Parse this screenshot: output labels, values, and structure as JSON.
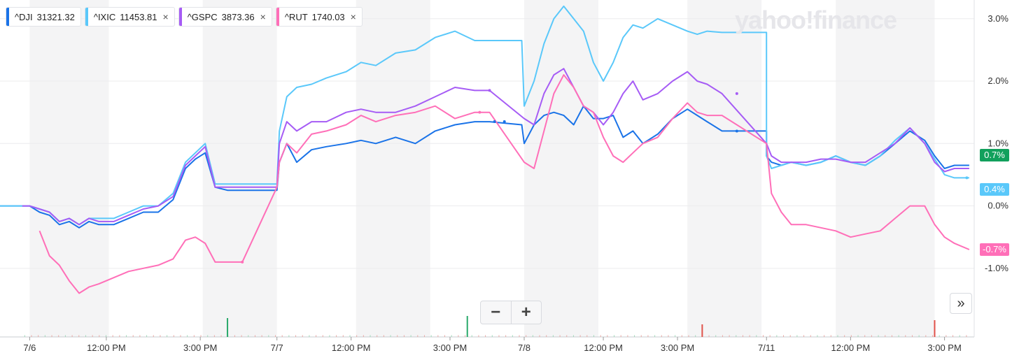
{
  "colors": {
    "dji": "#1a73e8",
    "ixic": "#5ac8fa",
    "gspc": "#a65cf5",
    "rut": "#ff6fb8",
    "positive": "#12a05c",
    "volume_up": "#2aa96b",
    "volume_down": "#e0524a"
  },
  "legend": [
    {
      "symbol": "^DJI",
      "value": "31321.32",
      "color": "#1a73e8",
      "closable": false
    },
    {
      "symbol": "^IXIC",
      "value": "11453.81",
      "color": "#5ac8fa",
      "closable": true
    },
    {
      "symbol": "^GSPC",
      "value": "3873.36",
      "color": "#a65cf5",
      "closable": true
    },
    {
      "symbol": "^RUT",
      "value": "1740.03",
      "color": "#ff6fb8",
      "closable": true
    }
  ],
  "close_icon": "×",
  "logo_text": "yahoo!finance",
  "zoom": {
    "minus": "−",
    "plus": "+"
  },
  "expand_icon": "»",
  "badges": [
    {
      "text": "0.7%",
      "value": 0.7,
      "color": "#12a05c"
    },
    {
      "text": "0.4%",
      "value": 0.4,
      "color": "#5ac8fa"
    },
    {
      "text": "-0.7%",
      "value": -0.7,
      "color": "#ff6fb8"
    }
  ],
  "chart_data": {
    "type": "line",
    "title": "",
    "xlabel": "",
    "ylabel": "",
    "y_unit": "%",
    "ylim": [
      -2.1,
      3.3
    ],
    "xlim": [
      0,
      19.7
    ],
    "grid": true,
    "legend_position": "top-left",
    "y_ticks": [
      3.0,
      2.0,
      1.0,
      0.0,
      -1.0
    ],
    "y_tick_labels": [
      "3.0%",
      "2.0%",
      "1.0%",
      "0.0%",
      "-1.0%"
    ],
    "x_ticks": [
      0.6,
      2.15,
      4.05,
      5.6,
      7.1,
      9.1,
      10.6,
      12.2,
      13.7,
      15.5,
      17.2,
      19.1
    ],
    "x_tick_labels": [
      "7/6",
      "12:00 PM",
      "3:00 PM",
      "7/7",
      "12:00 PM",
      "3:00 PM",
      "7/8",
      "12:00 PM",
      "3:00 PM",
      "7/11",
      "12:00 PM",
      "3:00 PM"
    ],
    "shaded_bands": [
      [
        0.6,
        2.2
      ],
      [
        4.1,
        5.6
      ],
      [
        7.2,
        8.7
      ],
      [
        10.6,
        12.1
      ],
      [
        13.9,
        15.4
      ],
      [
        16.9,
        18.9
      ]
    ],
    "series": [
      {
        "name": "^DJI",
        "color": "#1a73e8",
        "x": [
          0.0,
          0.45,
          0.6,
          0.8,
          1.0,
          1.2,
          1.4,
          1.6,
          1.8,
          2.0,
          2.3,
          2.6,
          2.9,
          3.2,
          3.5,
          3.75,
          3.95,
          4.15,
          4.35,
          4.6,
          4.9,
          5.6,
          5.65,
          5.8,
          6.0,
          6.3,
          6.6,
          7.0,
          7.3,
          7.6,
          8.0,
          8.4,
          8.8,
          9.2,
          9.6,
          9.9,
          10.55,
          10.6,
          10.8,
          11.0,
          11.2,
          11.4,
          11.6,
          11.8,
          12.0,
          12.2,
          12.4,
          12.6,
          12.8,
          13.0,
          13.3,
          13.6,
          13.9,
          14.1,
          14.3,
          14.6,
          15.5,
          15.5,
          15.6,
          15.8,
          16.0,
          16.3,
          16.6,
          16.9,
          17.2,
          17.5,
          17.8,
          18.1,
          18.4,
          18.7,
          18.9,
          19.1,
          19.3,
          19.6
        ],
        "y": [
          0.0,
          0.0,
          0.0,
          -0.1,
          -0.15,
          -0.3,
          -0.25,
          -0.35,
          -0.25,
          -0.3,
          -0.3,
          -0.2,
          -0.1,
          -0.1,
          0.1,
          0.6,
          0.75,
          0.85,
          0.3,
          0.25,
          0.25,
          0.25,
          0.7,
          1.0,
          0.7,
          0.9,
          0.95,
          1.0,
          1.05,
          1.0,
          1.1,
          1.0,
          1.2,
          1.3,
          1.35,
          1.35,
          1.3,
          1.0,
          1.3,
          1.45,
          1.5,
          1.45,
          1.3,
          1.6,
          1.4,
          1.4,
          1.45,
          1.1,
          1.2,
          1.0,
          1.15,
          1.4,
          1.55,
          1.45,
          1.35,
          1.2,
          1.2,
          0.8,
          0.7,
          0.65,
          0.7,
          0.65,
          0.7,
          0.8,
          0.7,
          0.65,
          0.8,
          1.0,
          1.2,
          1.05,
          0.8,
          0.6,
          0.65,
          0.65
        ]
      },
      {
        "name": "^IXIC",
        "color": "#5ac8fa",
        "x": [
          0.0,
          0.45,
          0.6,
          0.8,
          1.0,
          1.2,
          1.4,
          1.6,
          1.8,
          2.0,
          2.3,
          2.6,
          2.9,
          3.2,
          3.5,
          3.75,
          3.95,
          4.15,
          4.35,
          4.6,
          4.9,
          5.6,
          5.65,
          5.8,
          6.0,
          6.3,
          6.6,
          7.0,
          7.3,
          7.6,
          8.0,
          8.4,
          8.8,
          9.2,
          9.6,
          9.9,
          10.55,
          10.6,
          10.8,
          11.0,
          11.2,
          11.4,
          11.6,
          11.8,
          12.0,
          12.2,
          12.4,
          12.6,
          12.8,
          13.0,
          13.3,
          13.6,
          13.9,
          14.1,
          14.3,
          14.6,
          15.5,
          15.5,
          15.6,
          15.8,
          16.0,
          16.3,
          16.6,
          16.9,
          17.2,
          17.5,
          17.8,
          18.1,
          18.4,
          18.7,
          18.9,
          19.1,
          19.3,
          19.6
        ],
        "y": [
          0.0,
          0.0,
          0.0,
          -0.05,
          -0.1,
          -0.25,
          -0.2,
          -0.3,
          -0.2,
          -0.2,
          -0.2,
          -0.1,
          0.0,
          0.0,
          0.2,
          0.7,
          0.85,
          1.0,
          0.35,
          0.35,
          0.35,
          0.35,
          1.2,
          1.75,
          1.9,
          1.95,
          2.05,
          2.15,
          2.3,
          2.25,
          2.45,
          2.5,
          2.7,
          2.8,
          2.65,
          2.65,
          2.65,
          1.6,
          2.0,
          2.6,
          3.0,
          3.2,
          3.0,
          2.8,
          2.3,
          2.0,
          2.3,
          2.7,
          2.9,
          2.85,
          3.0,
          2.9,
          2.8,
          2.75,
          2.8,
          2.78,
          2.78,
          0.8,
          0.6,
          0.65,
          0.7,
          0.65,
          0.7,
          0.8,
          0.7,
          0.65,
          0.8,
          1.05,
          1.25,
          1.0,
          0.75,
          0.5,
          0.45,
          0.45
        ]
      },
      {
        "name": "^GSPC",
        "color": "#a65cf5",
        "x": [
          0.45,
          0.6,
          0.8,
          1.0,
          1.2,
          1.4,
          1.6,
          1.8,
          2.0,
          2.3,
          2.6,
          2.9,
          3.2,
          3.5,
          3.75,
          3.95,
          4.15,
          4.35,
          4.6,
          5.6,
          5.65,
          5.8,
          6.0,
          6.3,
          6.6,
          7.0,
          7.3,
          7.6,
          8.0,
          8.4,
          8.8,
          9.2,
          9.6,
          9.9,
          10.6,
          10.8,
          11.0,
          11.2,
          11.4,
          11.6,
          11.8,
          12.0,
          12.2,
          12.4,
          12.6,
          12.8,
          13.0,
          13.3,
          13.6,
          13.9,
          14.1,
          14.3,
          14.6,
          15.5,
          15.6,
          15.8,
          16.0,
          16.3,
          16.6,
          16.9,
          17.2,
          17.5,
          17.8,
          18.1,
          18.4,
          18.7,
          18.9,
          19.1,
          19.3,
          19.6
        ],
        "y": [
          0.0,
          0.0,
          -0.05,
          -0.1,
          -0.25,
          -0.2,
          -0.3,
          -0.2,
          -0.25,
          -0.25,
          -0.15,
          -0.05,
          0.0,
          0.15,
          0.65,
          0.8,
          0.95,
          0.3,
          0.3,
          0.3,
          1.0,
          1.35,
          1.2,
          1.35,
          1.35,
          1.5,
          1.55,
          1.5,
          1.5,
          1.6,
          1.75,
          1.9,
          1.85,
          1.85,
          1.4,
          1.3,
          1.8,
          2.1,
          2.2,
          1.9,
          1.6,
          1.5,
          1.3,
          1.5,
          1.8,
          2.0,
          1.7,
          1.8,
          2.0,
          2.15,
          2.0,
          1.95,
          1.8,
          1.0,
          0.8,
          0.7,
          0.7,
          0.7,
          0.75,
          0.75,
          0.7,
          0.7,
          0.85,
          1.0,
          1.25,
          1.0,
          0.7,
          0.55,
          0.6,
          0.6
        ]
      },
      {
        "name": "^RUT",
        "color": "#ff6fb8",
        "x": [
          0.8,
          1.0,
          1.2,
          1.4,
          1.6,
          1.8,
          2.0,
          2.3,
          2.6,
          2.9,
          3.2,
          3.5,
          3.75,
          3.95,
          4.15,
          4.35,
          4.6,
          4.9,
          5.6,
          5.65,
          5.8,
          6.0,
          6.3,
          6.6,
          7.0,
          7.3,
          7.6,
          8.0,
          8.4,
          8.8,
          9.2,
          9.6,
          9.9,
          10.6,
          10.8,
          11.0,
          11.2,
          11.4,
          11.6,
          11.8,
          12.0,
          12.2,
          12.4,
          12.6,
          12.8,
          13.0,
          13.3,
          13.6,
          13.9,
          14.1,
          14.3,
          14.6,
          15.5,
          15.6,
          15.8,
          16.0,
          16.3,
          16.6,
          16.9,
          17.2,
          17.5,
          17.8,
          18.1,
          18.4,
          18.7,
          18.9,
          19.1,
          19.3,
          19.6
        ],
        "y": [
          -0.4,
          -0.8,
          -0.95,
          -1.2,
          -1.4,
          -1.3,
          -1.25,
          -1.15,
          -1.05,
          -1.0,
          -0.95,
          -0.85,
          -0.55,
          -0.5,
          -0.6,
          -0.9,
          -0.9,
          -0.9,
          0.3,
          0.7,
          1.0,
          0.85,
          1.15,
          1.2,
          1.3,
          1.45,
          1.35,
          1.45,
          1.5,
          1.6,
          1.4,
          1.5,
          1.5,
          0.7,
          0.6,
          1.2,
          1.8,
          2.1,
          1.9,
          1.6,
          1.5,
          1.1,
          0.8,
          0.7,
          0.85,
          1.0,
          1.1,
          1.4,
          1.65,
          1.5,
          1.45,
          1.45,
          1.0,
          0.2,
          -0.1,
          -0.3,
          -0.3,
          -0.35,
          -0.4,
          -0.5,
          -0.45,
          -0.4,
          -0.2,
          0.0,
          0.0,
          -0.3,
          -0.5,
          -0.6,
          -0.7
        ]
      }
    ],
    "dots": [
      {
        "x": 19.55,
        "y": 0.45,
        "color": "#5ac8fa"
      },
      {
        "x": 4.9,
        "y": -0.9,
        "color": "#ff6fb8"
      },
      {
        "x": 10.0,
        "y": 1.35,
        "color": "#1a73e8"
      },
      {
        "x": 10.2,
        "y": 1.35,
        "color": "#1a73e8"
      },
      {
        "x": 9.9,
        "y": 1.85,
        "color": "#a65cf5"
      },
      {
        "x": 9.7,
        "y": 1.5,
        "color": "#ff6fb8"
      },
      {
        "x": 14.9,
        "y": 1.2,
        "color": "#1a73e8"
      },
      {
        "x": 14.9,
        "y": 1.8,
        "color": "#a65cf5"
      }
    ],
    "volume_bars": [
      {
        "x": 4.6,
        "h": 0.9,
        "dir": "up"
      },
      {
        "x": 9.45,
        "h": 1.0,
        "dir": "up"
      },
      {
        "x": 14.2,
        "h": 0.6,
        "dir": "down"
      },
      {
        "x": 18.9,
        "h": 0.8,
        "dir": "down"
      }
    ]
  }
}
